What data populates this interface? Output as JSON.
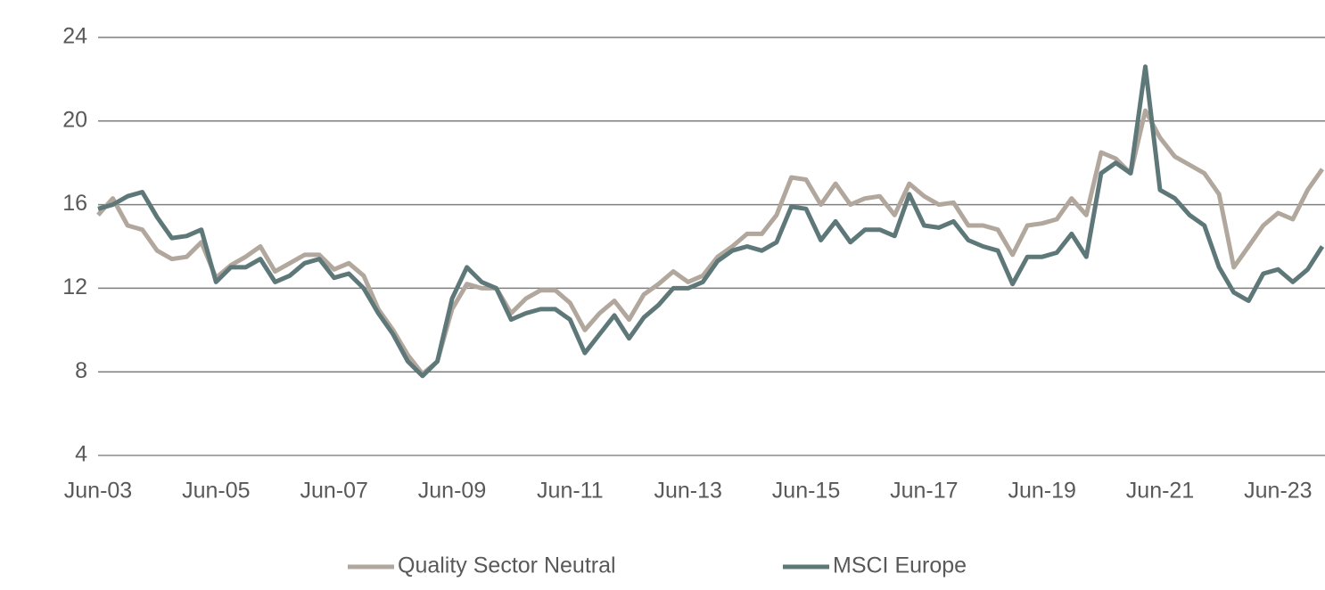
{
  "chart_data": {
    "type": "line",
    "categories": [
      "Jun-03",
      null,
      null,
      null,
      null,
      null,
      null,
      null,
      "Jun-05",
      null,
      null,
      null,
      null,
      null,
      null,
      null,
      "Jun-07",
      null,
      null,
      null,
      null,
      null,
      null,
      null,
      "Jun-09",
      null,
      null,
      null,
      null,
      null,
      null,
      null,
      "Jun-11",
      null,
      null,
      null,
      null,
      null,
      null,
      null,
      "Jun-13",
      null,
      null,
      null,
      null,
      null,
      null,
      null,
      "Jun-15",
      null,
      null,
      null,
      null,
      null,
      null,
      null,
      "Jun-17",
      null,
      null,
      null,
      null,
      null,
      null,
      null,
      "Jun-19",
      null,
      null,
      null,
      null,
      null,
      null,
      null,
      "Jun-21",
      null,
      null,
      null,
      null,
      null,
      null,
      null,
      "Jun-23",
      null,
      null,
      null
    ],
    "series": [
      {
        "name": "Quality Sector Neutral",
        "color": "#b2a79d",
        "values": [
          15.5,
          16.3,
          15.0,
          14.8,
          13.8,
          13.4,
          13.5,
          14.2,
          12.5,
          13.1,
          13.5,
          14.0,
          12.8,
          13.2,
          13.6,
          13.6,
          12.9,
          13.2,
          12.6,
          11.0,
          10.0,
          8.8,
          7.9,
          8.5,
          11.0,
          12.2,
          12.0,
          12.0,
          10.8,
          11.5,
          11.9,
          11.9,
          11.3,
          10.0,
          10.8,
          11.4,
          10.5,
          11.7,
          12.2,
          12.8,
          12.3,
          12.6,
          13.5,
          14.0,
          14.6,
          14.6,
          15.5,
          17.3,
          17.2,
          16.0,
          17.0,
          16.0,
          16.3,
          16.4,
          15.5,
          17.0,
          16.4,
          16.0,
          16.1,
          15.0,
          15.0,
          14.8,
          13.6,
          15.0,
          15.1,
          15.3,
          16.3,
          15.5,
          18.5,
          18.2,
          17.5,
          20.5,
          19.2,
          18.3,
          17.9,
          17.5,
          16.5,
          13.0,
          14.0,
          15.0,
          15.6,
          15.3,
          16.7,
          17.7
        ]
      },
      {
        "name": "MSCI Europe",
        "color": "#5e7879",
        "values": [
          15.8,
          16.0,
          16.4,
          16.6,
          15.4,
          14.4,
          14.5,
          14.8,
          12.3,
          13.0,
          13.0,
          13.4,
          12.3,
          12.6,
          13.2,
          13.4,
          12.5,
          12.7,
          12.0,
          10.8,
          9.8,
          8.5,
          7.8,
          8.5,
          11.5,
          13.0,
          12.3,
          12.0,
          10.5,
          10.8,
          11.0,
          11.0,
          10.5,
          8.9,
          9.8,
          10.7,
          9.6,
          10.6,
          11.2,
          12.0,
          12.0,
          12.3,
          13.3,
          13.8,
          14.0,
          13.8,
          14.2,
          15.9,
          15.8,
          14.3,
          15.2,
          14.2,
          14.8,
          14.8,
          14.5,
          16.5,
          15.0,
          14.9,
          15.2,
          14.3,
          14.0,
          13.8,
          12.2,
          13.5,
          13.5,
          13.7,
          14.6,
          13.5,
          17.5,
          18.0,
          17.5,
          22.6,
          16.7,
          16.3,
          15.5,
          15.0,
          13.0,
          11.8,
          11.4,
          12.7,
          12.9,
          12.3,
          12.9,
          14.0
        ]
      }
    ],
    "ylim": [
      4,
      24
    ],
    "yticks": [
      4,
      8,
      12,
      16,
      20,
      24
    ],
    "grid": true,
    "legend": "bottom"
  }
}
